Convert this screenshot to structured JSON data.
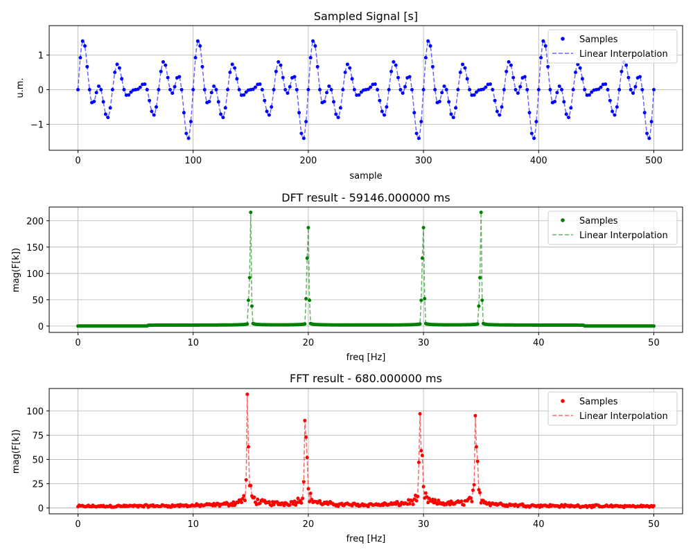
{
  "chart_data": [
    {
      "type": "scatter",
      "title": "Sampled Signal [s]",
      "xlabel": "sample",
      "ylabel": "u.m.",
      "xlim": [
        -25,
        525
      ],
      "ylim": [
        -1.75,
        1.85
      ],
      "xticks": [
        0,
        100,
        200,
        300,
        400,
        500
      ],
      "yticks": [
        -1,
        0,
        1
      ],
      "ytick_labels": [
        "−1",
        "0",
        "1"
      ],
      "grid": true,
      "legend": "top-right",
      "color": "#0000ff",
      "series": [
        {
          "name": "Samples",
          "style": "dots"
        },
        {
          "name": "Linear Interpolation",
          "style": "dashed"
        }
      ],
      "signal": {
        "n": 501,
        "components": [
          {
            "amplitude": 1,
            "cycles": 15
          },
          {
            "amplitude": 1,
            "cycles": 20
          },
          {
            "amplitude": 1,
            "cycles": 30
          },
          {
            "amplitude": 1,
            "cycles": 35
          }
        ]
      }
    },
    {
      "type": "scatter",
      "title": "DFT result - 59146.000000 ms",
      "xlabel": "freq [Hz]",
      "ylabel": "mag(F[k])",
      "xlim": [
        -2.5,
        52.5
      ],
      "ylim": [
        -12,
        226
      ],
      "xticks": [
        0,
        10,
        20,
        30,
        40,
        50
      ],
      "yticks": [
        0,
        50,
        100,
        150,
        200
      ],
      "grid": true,
      "legend": "top-right",
      "color": "#008000",
      "series": [
        {
          "name": "Samples",
          "style": "dots"
        },
        {
          "name": "Linear Interpolation",
          "style": "dashed"
        }
      ],
      "peaks": [
        {
          "freq": 15,
          "values": [
            49,
            92,
            216,
            38
          ]
        },
        {
          "freq": 20,
          "values": [
            52,
            129,
            187,
            49
          ]
        },
        {
          "freq": 30,
          "values": [
            49,
            129,
            187,
            52
          ]
        },
        {
          "freq": 35,
          "values": [
            38,
            92,
            216,
            49
          ]
        }
      ]
    },
    {
      "type": "scatter",
      "title": "FFT result - 680.000000 ms",
      "xlabel": "freq [Hz]",
      "ylabel": "mag(F[k])",
      "xlim": [
        -2.5,
        52.5
      ],
      "ylim": [
        -6,
        123
      ],
      "xticks": [
        0,
        10,
        20,
        30,
        40,
        50
      ],
      "yticks": [
        0,
        25,
        50,
        75,
        100
      ],
      "grid": true,
      "legend": "top-right",
      "color": "#ff0000",
      "series": [
        {
          "name": "Samples",
          "style": "dots"
        },
        {
          "name": "Linear Interpolation",
          "style": "dashed"
        }
      ],
      "peaks": [
        {
          "freq": 14.8,
          "values": [
            29,
            117,
            63,
            23
          ]
        },
        {
          "freq": 19.8,
          "values": [
            27,
            90,
            73,
            52
          ]
        },
        {
          "freq": 29.8,
          "values": [
            47,
            97,
            59,
            54
          ]
        },
        {
          "freq": 34.6,
          "values": [
            24,
            95,
            63,
            48
          ]
        }
      ]
    }
  ]
}
